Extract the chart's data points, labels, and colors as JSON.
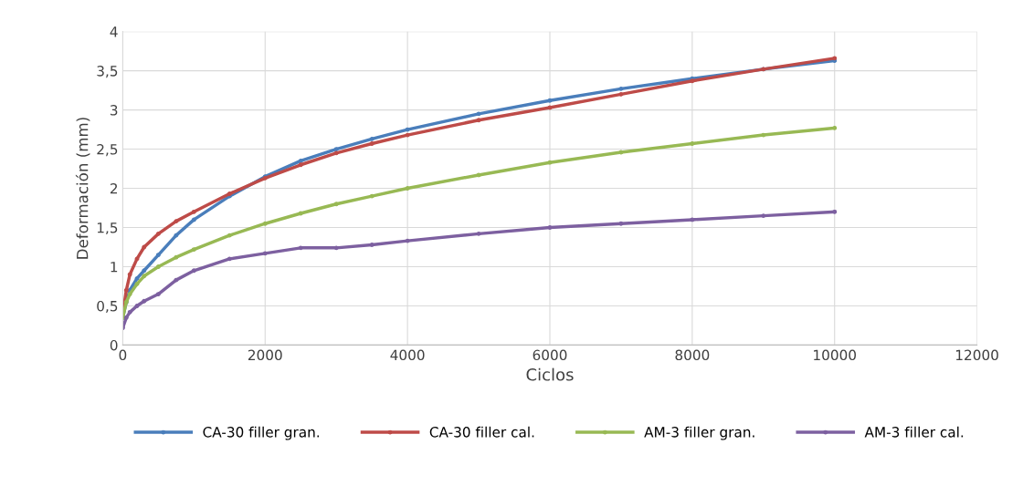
{
  "chart_data": {
    "type": "line",
    "xlabel": "Ciclos",
    "ylabel": "Deformación (mm)",
    "x": [
      0,
      50,
      100,
      200,
      300,
      500,
      750,
      1000,
      1500,
      2000,
      2500,
      3000,
      3500,
      4000,
      5000,
      6000,
      7000,
      8000,
      9000,
      10000
    ],
    "series": [
      {
        "name": "CA-30 filler gran.",
        "color": "#4a7ebb",
        "values": [
          0.35,
          0.55,
          0.7,
          0.85,
          0.95,
          1.15,
          1.4,
          1.6,
          1.9,
          2.15,
          2.35,
          2.5,
          2.63,
          2.75,
          2.95,
          3.12,
          3.27,
          3.4,
          3.52,
          3.63
        ]
      },
      {
        "name": "CA-30 filler cal.",
        "color": "#be4b48",
        "values": [
          0.4,
          0.7,
          0.9,
          1.1,
          1.25,
          1.42,
          1.58,
          1.7,
          1.93,
          2.13,
          2.3,
          2.45,
          2.57,
          2.68,
          2.87,
          3.03,
          3.2,
          3.37,
          3.52,
          3.66
        ]
      },
      {
        "name": "AM-3 filler gran.",
        "color": "#98b954",
        "values": [
          0.35,
          0.55,
          0.65,
          0.78,
          0.88,
          1.0,
          1.12,
          1.22,
          1.4,
          1.55,
          1.68,
          1.8,
          1.9,
          2.0,
          2.17,
          2.33,
          2.46,
          2.57,
          2.68,
          2.77
        ]
      },
      {
        "name": "AM-3 filler cal.",
        "color": "#7d60a0",
        "values": [
          0.22,
          0.35,
          0.42,
          0.5,
          0.56,
          0.65,
          0.83,
          0.95,
          1.1,
          1.17,
          1.24,
          1.24,
          1.28,
          1.33,
          1.42,
          1.5,
          1.55,
          1.6,
          1.65,
          1.7
        ]
      }
    ],
    "xlim": [
      0,
      12000
    ],
    "xticks": [
      0,
      2000,
      4000,
      6000,
      8000,
      10000,
      12000
    ],
    "ylim": [
      0,
      4
    ],
    "yticks": [
      0,
      {
        "value": 0.5,
        "label": "0,5"
      },
      1,
      {
        "value": 1.5,
        "label": "1,5"
      },
      2,
      {
        "value": 2.5,
        "label": "2,5"
      },
      3,
      {
        "value": 3.5,
        "label": "3,5"
      },
      4
    ],
    "grid": true,
    "legend": "bottom",
    "marker": "circle"
  }
}
